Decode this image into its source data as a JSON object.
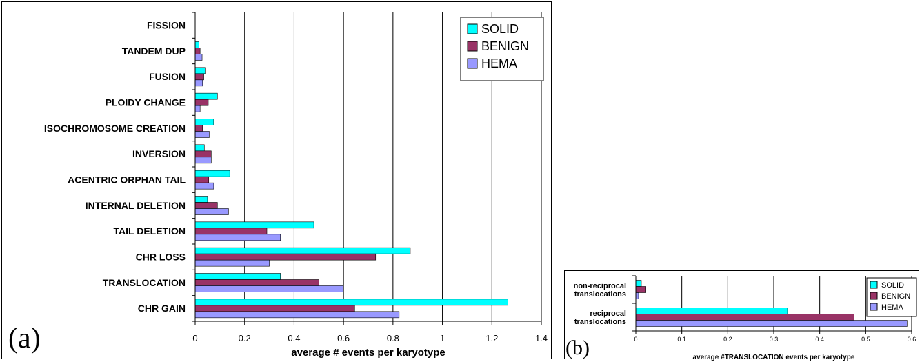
{
  "chart_data": [
    {
      "panel": "(a)",
      "type": "bar",
      "orientation": "horizontal",
      "categories": [
        "CHR GAIN",
        "TRANSLOCATION",
        "CHR LOSS",
        "TAIL DELETION",
        "INTERNAL DELETION",
        "ACENTRIC ORPHAN TAIL",
        "INVERSION",
        "ISOCHROMOSOME CREATION",
        "PLOIDY CHANGE",
        "FUSION",
        "TANDEM DUP",
        "FISSION"
      ],
      "series": [
        {
          "name": "SOLID",
          "color": "#00ffff",
          "values": [
            1.265,
            0.345,
            0.87,
            0.48,
            0.05,
            0.14,
            0.037,
            0.075,
            0.09,
            0.04,
            0.015,
            0.0
          ]
        },
        {
          "name": "BENIGN",
          "color": "#993366",
          "values": [
            0.645,
            0.5,
            0.73,
            0.29,
            0.09,
            0.055,
            0.065,
            0.03,
            0.053,
            0.035,
            0.02,
            0.0
          ]
        },
        {
          "name": "HEMA",
          "color": "#9999ff",
          "values": [
            0.825,
            0.6,
            0.3,
            0.345,
            0.135,
            0.075,
            0.065,
            0.057,
            0.02,
            0.03,
            0.028,
            0.0
          ]
        }
      ],
      "xlabel": "average # events per karyotype",
      "xlim": [
        0,
        1.4
      ],
      "xticks": [
        "0",
        "0.2",
        "0.4",
        "0.6",
        "0.8",
        "1",
        "1.2",
        "1.4"
      ],
      "grid": "vertical",
      "legend": "top-right"
    },
    {
      "panel": "(b)",
      "type": "bar",
      "orientation": "horizontal",
      "categories": [
        [
          "reciprocal",
          "translocations"
        ],
        [
          "non-reciprocal",
          "translocations"
        ]
      ],
      "series": [
        {
          "name": "SOLID",
          "color": "#00ffff",
          "values": [
            0.33,
            0.012
          ]
        },
        {
          "name": "BENIGN",
          "color": "#993366",
          "values": [
            0.475,
            0.022
          ]
        },
        {
          "name": "HEMA",
          "color": "#9999ff",
          "values": [
            0.59,
            0.006
          ]
        }
      ],
      "xlabel": "average #TRANSLOCATION events per karyotype",
      "xlim": [
        0,
        0.6
      ],
      "xticks": [
        "0",
        "0.1",
        "0.2",
        "0.3",
        "0.4",
        "0.5",
        "0.6"
      ],
      "grid": "vertical",
      "legend": "top-right"
    }
  ]
}
